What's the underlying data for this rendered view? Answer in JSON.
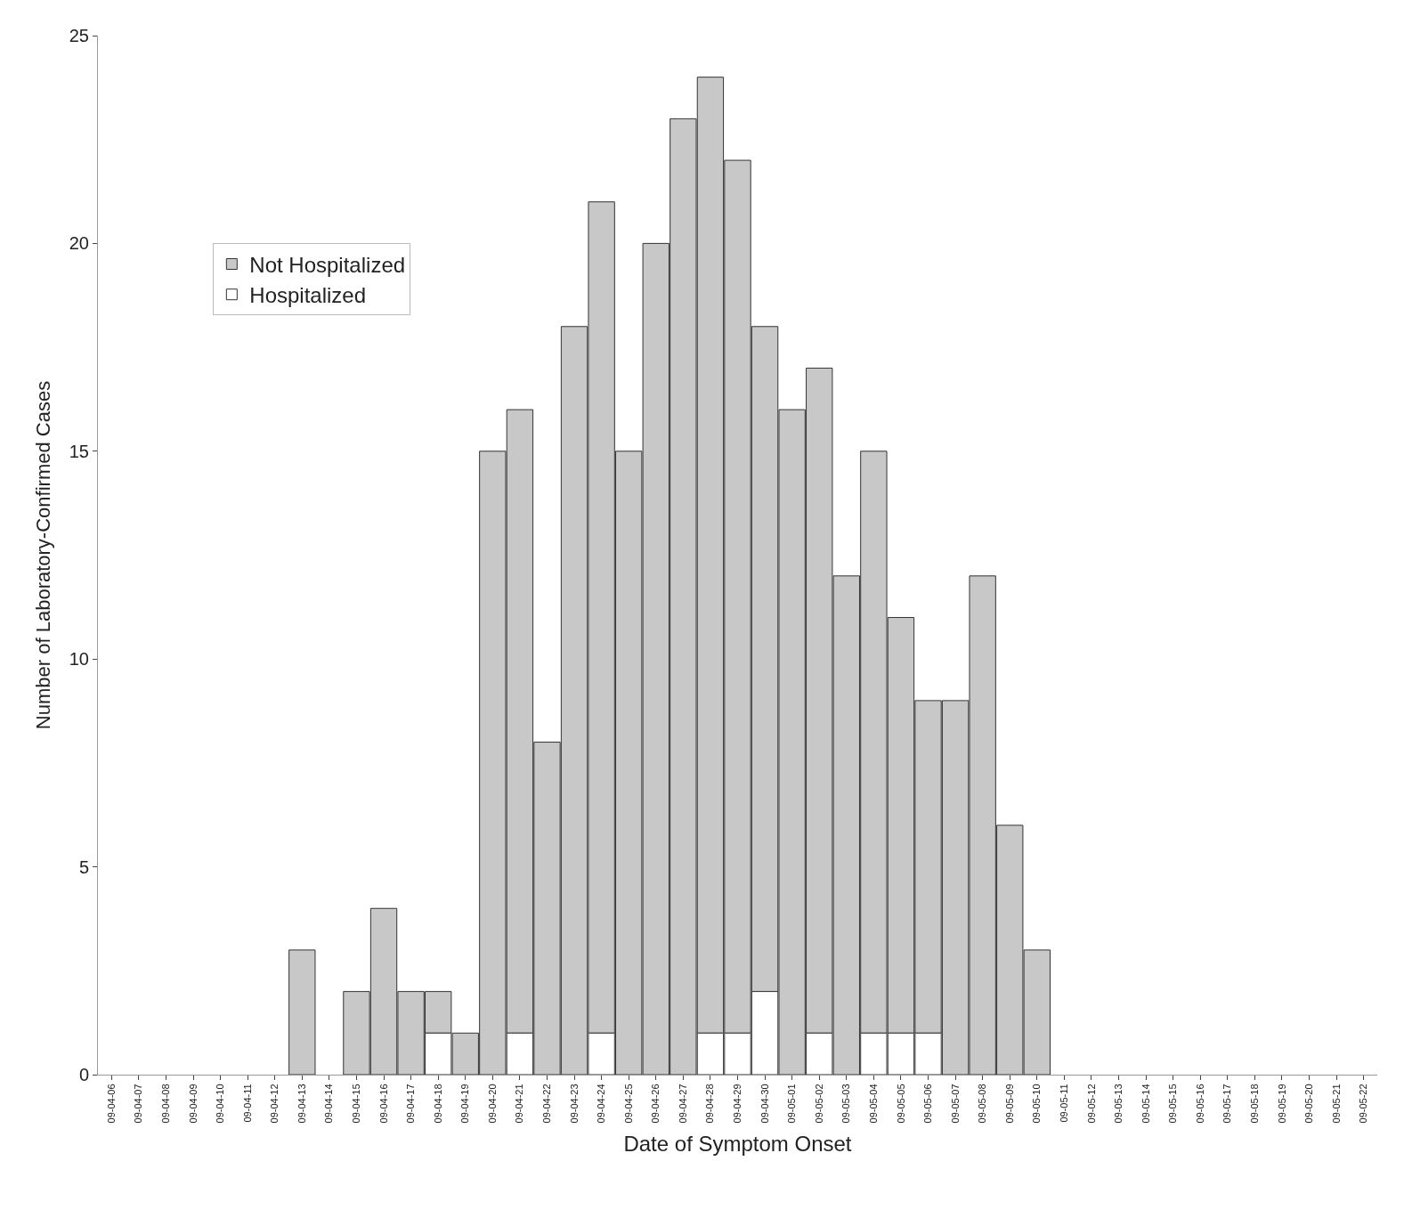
{
  "chart_data": {
    "type": "bar",
    "stacked": true,
    "xlabel": "Date of Symptom Onset",
    "ylabel": "Number of Laboratory-Confirmed Cases",
    "categories": [
      "09-04-06",
      "09-04-07",
      "09-04-08",
      "09-04-09",
      "09-04-10",
      "09-04-11",
      "09-04-12",
      "09-04-13",
      "09-04-14",
      "09-04-15",
      "09-04-16",
      "09-04-17",
      "09-04-18",
      "09-04-19",
      "09-04-20",
      "09-04-21",
      "09-04-22",
      "09-04-23",
      "09-04-24",
      "09-04-25",
      "09-04-26",
      "09-04-27",
      "09-04-28",
      "09-04-29",
      "09-04-30",
      "09-05-01",
      "09-05-02",
      "09-05-03",
      "09-05-04",
      "09-05-05",
      "09-05-06",
      "09-05-07",
      "09-05-08",
      "09-05-09",
      "09-05-10",
      "09-05-11",
      "09-05-12",
      "09-05-13",
      "09-05-14",
      "09-05-15",
      "09-05-16",
      "09-05-17",
      "09-05-18",
      "09-05-19",
      "09-05-20",
      "09-05-21",
      "09-05-22"
    ],
    "series": [
      {
        "name": "Hospitalized",
        "color": "#ffffff",
        "values": [
          0,
          0,
          0,
          0,
          0,
          0,
          0,
          0,
          0,
          0,
          0,
          0,
          1,
          0,
          0,
          1,
          0,
          0,
          1,
          0,
          0,
          0,
          1,
          1,
          2,
          0,
          1,
          0,
          1,
          1,
          1,
          0,
          0,
          0,
          0,
          0,
          0,
          0,
          0,
          0,
          0,
          0,
          0,
          0,
          0,
          0,
          0
        ]
      },
      {
        "name": "Not Hospitalized",
        "color": "#c8c8c8",
        "values": [
          0,
          0,
          0,
          0,
          0,
          0,
          0,
          3,
          0,
          2,
          4,
          2,
          1,
          1,
          15,
          15,
          8,
          18,
          20,
          15,
          20,
          23,
          23,
          21,
          16,
          16,
          16,
          12,
          14,
          10,
          8,
          9,
          12,
          6,
          3,
          0,
          0,
          0,
          0,
          0,
          0,
          0,
          0,
          0,
          0,
          0,
          0
        ]
      }
    ],
    "ylim": [
      0,
      25
    ],
    "yticks": [
      0,
      5,
      10,
      15,
      20,
      25
    ],
    "legend": "top left"
  }
}
